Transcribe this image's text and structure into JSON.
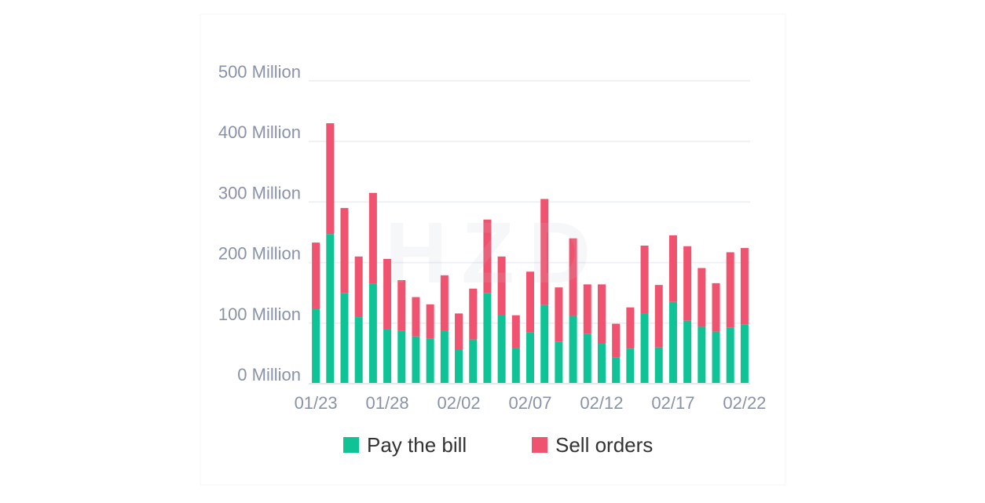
{
  "chart_data": {
    "type": "bar",
    "stacked": true,
    "categories": [
      "01/23",
      "01/24",
      "01/25",
      "01/26",
      "01/27",
      "01/28",
      "01/29",
      "01/30",
      "01/31",
      "02/01",
      "02/02",
      "02/03",
      "02/04",
      "02/05",
      "02/06",
      "02/07",
      "02/08",
      "02/09",
      "02/10",
      "02/11",
      "02/12",
      "02/13",
      "02/14",
      "02/15",
      "02/16",
      "02/17",
      "02/18",
      "02/19",
      "02/20",
      "02/21",
      "02/22"
    ],
    "x_tick_labels": [
      "01/23",
      "01/28",
      "02/02",
      "02/07",
      "02/12",
      "02/17",
      "02/22"
    ],
    "series": [
      {
        "name": "Pay the bill",
        "color": "#0fc396",
        "values": [
          123,
          247,
          150,
          110,
          165,
          90,
          87,
          78,
          74,
          88,
          57,
          73,
          150,
          114,
          59,
          85,
          130,
          69,
          112,
          82,
          66,
          43,
          58,
          116,
          60,
          135,
          104,
          94,
          86,
          93,
          98
        ]
      },
      {
        "name": "Sell orders",
        "color": "#f0536f",
        "values": [
          110,
          183,
          140,
          100,
          150,
          116,
          84,
          65,
          57,
          91,
          59,
          84,
          121,
          96,
          54,
          100,
          175,
          90,
          128,
          82,
          98,
          56,
          68,
          112,
          103,
          110,
          123,
          97,
          80,
          124,
          126
        ]
      }
    ],
    "y_tick_labels": [
      "0 Million",
      "100 Million",
      "200 Million",
      "300 Million",
      "400 Million",
      "500 Million"
    ],
    "ylim": [
      0,
      500
    ],
    "unit": "Million",
    "grid": true,
    "legend_position": "bottom-center",
    "watermark": "HZD"
  }
}
